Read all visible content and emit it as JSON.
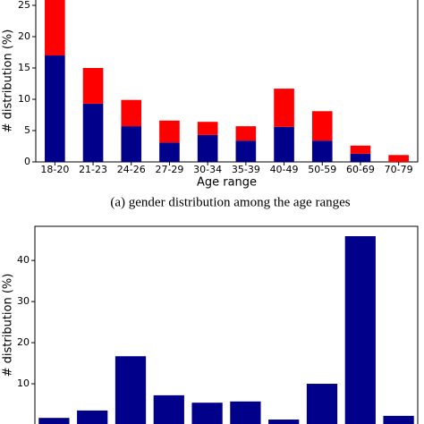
{
  "chart_data": [
    {
      "type": "stacked_bar",
      "categories": [
        "18-20",
        "21-23",
        "24-26",
        "27-29",
        "30-34",
        "35-39",
        "40-49",
        "50-59",
        "60-69",
        "70-79"
      ],
      "series": [
        {
          "color": "#00008b",
          "values": [
            17.0,
            9.3,
            5.7,
            3.1,
            4.3,
            3.4,
            5.6,
            3.4,
            1.3,
            0
          ]
        },
        {
          "color": "#ff0000",
          "values": [
            9.0,
            5.7,
            4.2,
            3.5,
            2.1,
            2.3,
            6.1,
            4.7,
            1.3,
            1.1
          ]
        }
      ],
      "xlabel": "Age range",
      "ylabel": "# distribution (%)",
      "caption": "(a) gender distribution among the age ranges",
      "ylim": [
        0,
        26.5
      ],
      "yticks": [
        0,
        5,
        10,
        15,
        20,
        25
      ]
    },
    {
      "type": "bar",
      "categories": [
        null,
        null,
        null,
        null,
        null,
        null,
        null,
        null,
        null,
        null
      ],
      "values": [
        1.7,
        3.5,
        16.7,
        7.2,
        5.4,
        5.7,
        1.3,
        10,
        45.9,
        2.2
      ],
      "color": "#00008b",
      "ylabel": "# distribution (%)",
      "ylim": [
        0,
        48.3
      ],
      "yticks": [
        10,
        20,
        30,
        40
      ]
    }
  ]
}
